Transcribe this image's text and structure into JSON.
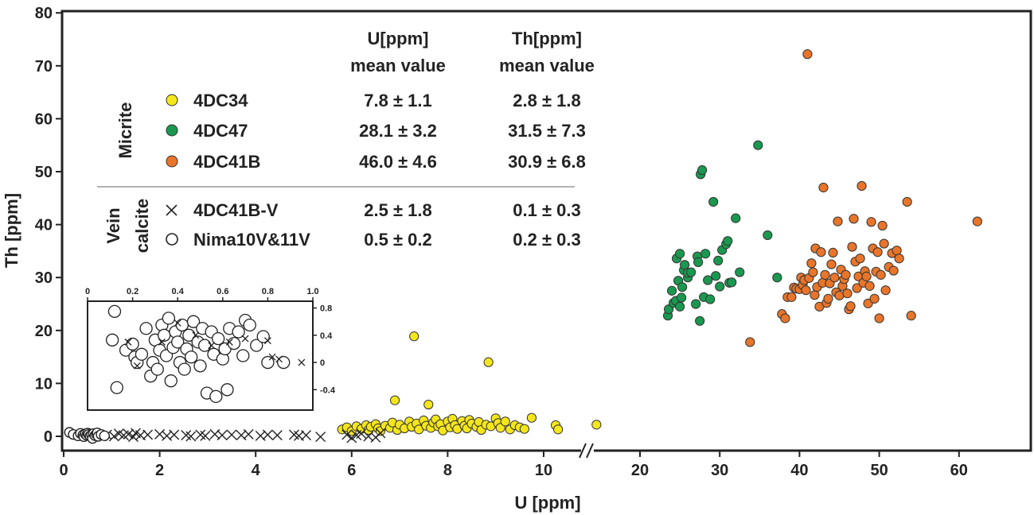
{
  "chart_data": {
    "type": "scatter",
    "xlabel": "U [ppm]",
    "ylabel": "Th [ppm]",
    "ylim": [
      0,
      80
    ],
    "y_ticks": [
      "0",
      "10",
      "20",
      "30",
      "40",
      "50",
      "60",
      "70",
      "80"
    ],
    "x_ticks": [
      "0",
      "2",
      "4",
      "6",
      "8",
      "10",
      "20",
      "30",
      "40",
      "50",
      "60"
    ],
    "x_axis_break": "between 11 and 17 ppm U (axis break marks //); 0-11 ppm linear, 17-65 ppm compressed linear",
    "grid": false,
    "table": {
      "header_u": [
        "U[ppm]",
        "mean value"
      ],
      "header_th": [
        "Th[ppm]",
        "mean value"
      ],
      "group_micrite": "Micrite",
      "group_vein": [
        "Vein",
        "calcite"
      ],
      "rows": [
        {
          "name": "4DC34",
          "u": "7.8 ± 1.1",
          "th": "2.8 ± 1.8",
          "marker": "circle",
          "color": "#f5e61c"
        },
        {
          "name": "4DC47",
          "u": "28.1 ± 3.2",
          "th": "31.5 ± 7.3",
          "marker": "circle",
          "color": "#1a9850"
        },
        {
          "name": "4DC41B",
          "u": "46.0 ± 4.6",
          "th": "30.9 ± 6.8",
          "marker": "circle",
          "color": "#e8752a"
        },
        {
          "name": "4DC41B-V",
          "u": "2.5 ± 1.8",
          "th": "0.1 ± 0.3",
          "marker": "x",
          "color": "#000000"
        },
        {
          "name": "Nima10V&11V",
          "u": "0.5 ± 0.2",
          "th": "0.2 ± 0.3",
          "marker": "open-circle",
          "color": "#000000"
        }
      ]
    },
    "series": [
      {
        "name": "4DC34",
        "color": "#f5e61c",
        "marker": "circle",
        "points": [
          [
            5.8,
            1.3
          ],
          [
            5.9,
            1.7
          ],
          [
            6.0,
            1.0
          ],
          [
            6.1,
            1.9
          ],
          [
            6.2,
            1.4
          ],
          [
            6.3,
            2.1
          ],
          [
            6.35,
            1.2
          ],
          [
            6.4,
            1.8
          ],
          [
            6.5,
            2.3
          ],
          [
            6.55,
            1.5
          ],
          [
            6.6,
            1.0
          ],
          [
            6.7,
            2.0
          ],
          [
            6.8,
            1.6
          ],
          [
            6.85,
            2.6
          ],
          [
            6.9,
            6.8
          ],
          [
            6.95,
            1.2
          ],
          [
            7.0,
            2.2
          ],
          [
            7.1,
            1.5
          ],
          [
            7.2,
            2.8
          ],
          [
            7.25,
            1.8
          ],
          [
            7.3,
            18.9
          ],
          [
            7.35,
            2.4
          ],
          [
            7.4,
            1.3
          ],
          [
            7.5,
            3.0
          ],
          [
            7.55,
            2.0
          ],
          [
            7.6,
            6.0
          ],
          [
            7.65,
            1.6
          ],
          [
            7.7,
            2.6
          ],
          [
            7.75,
            3.2
          ],
          [
            7.8,
            1.9
          ],
          [
            7.85,
            2.3
          ],
          [
            7.9,
            1.1
          ],
          [
            8.0,
            2.8
          ],
          [
            8.05,
            1.7
          ],
          [
            8.1,
            3.3
          ],
          [
            8.15,
            2.1
          ],
          [
            8.2,
            1.4
          ],
          [
            8.3,
            2.9
          ],
          [
            8.35,
            2.0
          ],
          [
            8.4,
            1.5
          ],
          [
            8.45,
            3.1
          ],
          [
            8.5,
            2.4
          ],
          [
            8.6,
            1.8
          ],
          [
            8.65,
            2.7
          ],
          [
            8.7,
            1.2
          ],
          [
            8.8,
            2.2
          ],
          [
            8.85,
            14.0
          ],
          [
            8.9,
            1.9
          ],
          [
            9.0,
            3.4
          ],
          [
            9.05,
            2.5
          ],
          [
            9.1,
            1.6
          ],
          [
            9.2,
            2.8
          ],
          [
            9.3,
            1.3
          ],
          [
            9.4,
            2.1
          ],
          [
            9.5,
            1.7
          ],
          [
            9.6,
            1.4
          ],
          [
            9.75,
            3.5
          ],
          [
            10.25,
            2.1
          ],
          [
            10.3,
            1.3
          ],
          [
            11.1,
            2.2
          ]
        ]
      },
      {
        "name": "4DC47",
        "color": "#1a9850",
        "marker": "circle",
        "points": [
          [
            23.5,
            22.8
          ],
          [
            23.6,
            24.0
          ],
          [
            24.0,
            27.5
          ],
          [
            24.2,
            25.2
          ],
          [
            24.5,
            25.6
          ],
          [
            24.6,
            33.6
          ],
          [
            24.8,
            29.4
          ],
          [
            25.0,
            24.5
          ],
          [
            25.0,
            34.5
          ],
          [
            25.2,
            26.2
          ],
          [
            25.3,
            28.2
          ],
          [
            25.5,
            31.4
          ],
          [
            25.6,
            32.4
          ],
          [
            26.0,
            30.0
          ],
          [
            26.0,
            30.9
          ],
          [
            26.4,
            31.0
          ],
          [
            27.0,
            25.0
          ],
          [
            27.2,
            34.0
          ],
          [
            27.3,
            32.9
          ],
          [
            27.5,
            21.8
          ],
          [
            27.6,
            49.5
          ],
          [
            27.8,
            50.3
          ],
          [
            28.0,
            26.3
          ],
          [
            28.2,
            34.5
          ],
          [
            28.5,
            29.5
          ],
          [
            28.8,
            25.9
          ],
          [
            29.2,
            44.3
          ],
          [
            29.5,
            30.3
          ],
          [
            29.8,
            33.2
          ],
          [
            30.0,
            28.3
          ],
          [
            30.3,
            35.2
          ],
          [
            30.8,
            36.3
          ],
          [
            31.0,
            36.9
          ],
          [
            31.2,
            29.0
          ],
          [
            31.5,
            29.1
          ],
          [
            32.0,
            41.2
          ],
          [
            32.5,
            31.0
          ],
          [
            34.8,
            55.0
          ],
          [
            36.0,
            38.0
          ],
          [
            37.2,
            30.0
          ]
        ]
      },
      {
        "name": "4DC41B",
        "color": "#e8752a",
        "marker": "circle",
        "points": [
          [
            33.8,
            17.8
          ],
          [
            37.8,
            23.1
          ],
          [
            38.2,
            22.3
          ],
          [
            38.5,
            26.3
          ],
          [
            39.0,
            26.3
          ],
          [
            39.3,
            28.1
          ],
          [
            39.6,
            27.9
          ],
          [
            40.0,
            27.8
          ],
          [
            40.2,
            30.0
          ],
          [
            40.4,
            28.6
          ],
          [
            40.6,
            29.5
          ],
          [
            40.8,
            27.6
          ],
          [
            41.0,
            72.2
          ],
          [
            41.2,
            29.9
          ],
          [
            41.5,
            32.7
          ],
          [
            41.7,
            31.0
          ],
          [
            41.9,
            26.7
          ],
          [
            42.0,
            35.5
          ],
          [
            42.2,
            28.2
          ],
          [
            42.5,
            24.5
          ],
          [
            42.7,
            34.8
          ],
          [
            42.9,
            29.0
          ],
          [
            43.0,
            47.0
          ],
          [
            43.2,
            30.5
          ],
          [
            43.4,
            25.2
          ],
          [
            43.6,
            26.0
          ],
          [
            43.8,
            28.9
          ],
          [
            44.0,
            32.5
          ],
          [
            44.2,
            34.7
          ],
          [
            44.4,
            30.0
          ],
          [
            44.6,
            27.2
          ],
          [
            44.8,
            40.6
          ],
          [
            45.0,
            26.6
          ],
          [
            45.2,
            31.5
          ],
          [
            45.4,
            28.4
          ],
          [
            45.6,
            29.7
          ],
          [
            45.8,
            30.5
          ],
          [
            46.0,
            27.0
          ],
          [
            46.2,
            24.0
          ],
          [
            46.4,
            24.6
          ],
          [
            46.6,
            35.8
          ],
          [
            46.8,
            41.1
          ],
          [
            47.0,
            33.0
          ],
          [
            47.2,
            28.0
          ],
          [
            47.4,
            30.2
          ],
          [
            47.6,
            33.6
          ],
          [
            47.8,
            47.3
          ],
          [
            48.0,
            29.0
          ],
          [
            48.2,
            31.2
          ],
          [
            48.4,
            30.2
          ],
          [
            48.6,
            25.1
          ],
          [
            48.8,
            28.4
          ],
          [
            49.0,
            40.5
          ],
          [
            49.2,
            35.5
          ],
          [
            49.4,
            26.0
          ],
          [
            49.6,
            31.1
          ],
          [
            49.8,
            34.8
          ],
          [
            50.0,
            22.3
          ],
          [
            50.2,
            30.5
          ],
          [
            50.4,
            39.8
          ],
          [
            50.6,
            36.4
          ],
          [
            50.8,
            27.6
          ],
          [
            51.2,
            32.0
          ],
          [
            51.6,
            34.6
          ],
          [
            51.8,
            31.3
          ],
          [
            52.2,
            35.1
          ],
          [
            52.5,
            33.6
          ],
          [
            53.5,
            44.3
          ],
          [
            54.0,
            22.8
          ],
          [
            62.3,
            40.6
          ]
        ]
      },
      {
        "name": "4DC41B-V",
        "color": "#000000",
        "marker": "x",
        "points": [
          [
            0.55,
            0.3
          ],
          [
            0.65,
            0.4
          ],
          [
            0.75,
            0.2
          ],
          [
            0.9,
            0.3
          ],
          [
            1.05,
            0.0
          ],
          [
            1.15,
            0.5
          ],
          [
            1.25,
            0.2
          ],
          [
            1.35,
            0.4
          ],
          [
            1.45,
            -0.1
          ],
          [
            1.5,
            0.6
          ],
          [
            1.6,
            0.2
          ],
          [
            1.75,
            0.3
          ],
          [
            2.0,
            0.4
          ],
          [
            2.15,
            0.1
          ],
          [
            2.3,
            0.3
          ],
          [
            2.55,
            0.2
          ],
          [
            2.65,
            0.0
          ],
          [
            2.85,
            0.3
          ],
          [
            2.95,
            0.1
          ],
          [
            3.15,
            0.4
          ],
          [
            3.3,
            0.2
          ],
          [
            3.5,
            0.3
          ],
          [
            3.7,
            0.2
          ],
          [
            3.85,
            0.4
          ],
          [
            4.1,
            0.1
          ],
          [
            4.25,
            0.3
          ],
          [
            4.45,
            0.2
          ],
          [
            4.8,
            0.3
          ],
          [
            4.9,
            0.1
          ],
          [
            5.05,
            0.2
          ],
          [
            5.35,
            -0.1
          ],
          [
            5.9,
            0.3
          ],
          [
            6.0,
            -0.3
          ],
          [
            6.1,
            0.2
          ],
          [
            6.2,
            0.5
          ],
          [
            6.35,
            0.0
          ],
          [
            6.5,
            -0.2
          ],
          [
            6.6,
            0.6
          ]
        ]
      },
      {
        "name": "Nima10V&11V",
        "color": "#000000",
        "marker": "open-circle",
        "points": [
          [
            0.12,
            0.75
          ],
          [
            0.2,
            0.35
          ],
          [
            0.3,
            0.1
          ],
          [
            0.35,
            0.55
          ],
          [
            0.4,
            0.25
          ],
          [
            0.42,
            -0.05
          ],
          [
            0.45,
            0.45
          ],
          [
            0.48,
            0.2
          ],
          [
            0.5,
            0.6
          ],
          [
            0.52,
            0.35
          ],
          [
            0.55,
            0.05
          ],
          [
            0.58,
            0.3
          ],
          [
            0.6,
            -0.4
          ],
          [
            0.62,
            0.5
          ],
          [
            0.65,
            0.15
          ],
          [
            0.68,
            0.4
          ],
          [
            0.7,
            0.65
          ],
          [
            0.72,
            0.0
          ],
          [
            0.78,
            0.35
          ],
          [
            0.85,
            0.1
          ]
        ]
      }
    ],
    "inset": {
      "x_ticks": [
        "0",
        "0.2",
        "0.4",
        "0.6",
        "0.8",
        "1.0"
      ],
      "y_ticks": [
        "0.8",
        "0.4",
        "0",
        "-0.4"
      ],
      "xlim": [
        0,
        1.0
      ],
      "ylim": [
        -0.7,
        0.9
      ],
      "open_circles": [
        [
          0.12,
          0.75
        ],
        [
          0.13,
          -0.37
        ],
        [
          0.11,
          0.33
        ],
        [
          0.17,
          0.18
        ],
        [
          0.2,
          0.27
        ],
        [
          0.21,
          0.08
        ],
        [
          0.22,
          0.0
        ],
        [
          0.24,
          0.12
        ],
        [
          0.26,
          0.5
        ],
        [
          0.28,
          -0.2
        ],
        [
          0.29,
          0.0
        ],
        [
          0.3,
          0.33
        ],
        [
          0.31,
          -0.1
        ],
        [
          0.32,
          0.18
        ],
        [
          0.33,
          0.55
        ],
        [
          0.34,
          0.4
        ],
        [
          0.35,
          0.1
        ],
        [
          0.36,
          0.65
        ],
        [
          0.37,
          -0.27
        ],
        [
          0.38,
          0.22
        ],
        [
          0.39,
          0.45
        ],
        [
          0.4,
          0.3
        ],
        [
          0.41,
          0.0
        ],
        [
          0.42,
          0.55
        ],
        [
          0.43,
          -0.1
        ],
        [
          0.44,
          0.2
        ],
        [
          0.45,
          0.4
        ],
        [
          0.46,
          0.08
        ],
        [
          0.47,
          0.6
        ],
        [
          0.49,
          0.3
        ],
        [
          0.5,
          -0.05
        ],
        [
          0.51,
          0.5
        ],
        [
          0.52,
          0.25
        ],
        [
          0.53,
          -0.45
        ],
        [
          0.55,
          0.45
        ],
        [
          0.56,
          0.12
        ],
        [
          0.57,
          -0.5
        ],
        [
          0.58,
          0.35
        ],
        [
          0.6,
          0.05
        ],
        [
          0.61,
          0.2
        ],
        [
          0.62,
          -0.4
        ],
        [
          0.63,
          0.5
        ],
        [
          0.65,
          0.28
        ],
        [
          0.67,
          0.45
        ],
        [
          0.69,
          0.1
        ],
        [
          0.7,
          0.62
        ],
        [
          0.72,
          0.55
        ],
        [
          0.75,
          0.25
        ],
        [
          0.78,
          0.38
        ],
        [
          0.8,
          0.0
        ],
        [
          0.87,
          0.0
        ]
      ],
      "crosses": [
        [
          0.18,
          0.3
        ],
        [
          0.22,
          -0.05
        ],
        [
          0.33,
          0.3
        ],
        [
          0.4,
          0.58
        ],
        [
          0.48,
          0.4
        ],
        [
          0.55,
          0.25
        ],
        [
          0.63,
          0.3
        ],
        [
          0.7,
          0.35
        ],
        [
          0.8,
          0.32
        ],
        [
          0.82,
          0.08
        ],
        [
          0.85,
          0.05
        ],
        [
          0.95,
          0.0
        ]
      ]
    }
  }
}
